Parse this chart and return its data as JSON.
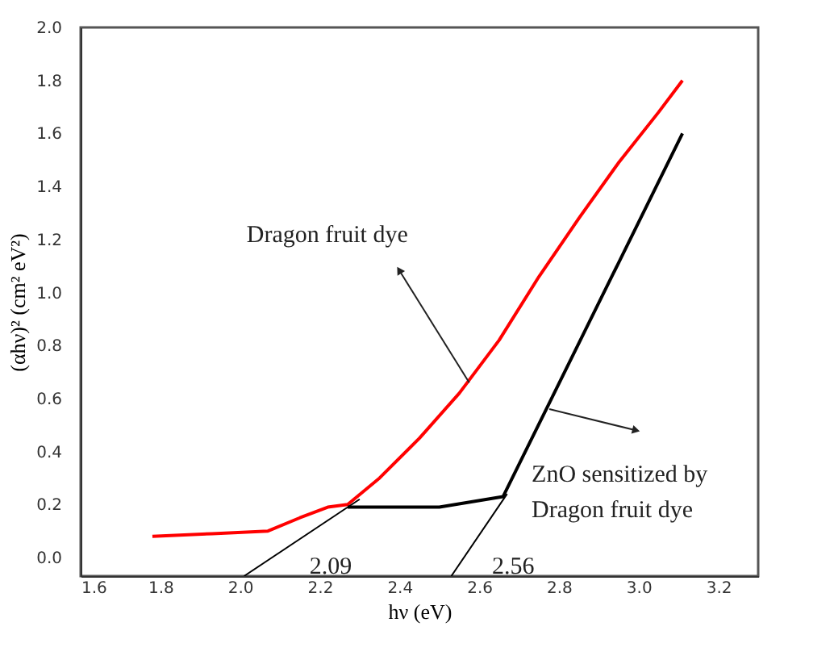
{
  "chart_data": {
    "type": "line",
    "xlabel": "hν (eV)",
    "ylabel": "(αhν)² (cm² eV²)",
    "xlim": [
      1.6,
      3.3
    ],
    "xticks": [
      1.6,
      1.8,
      {
        "value": 2,
        "label": "2.0"
      },
      2.2,
      2.4,
      2.6,
      2.8,
      {
        "value": 3,
        "label": "3.0"
      },
      3.2
    ],
    "ylim": [
      -0.07,
      2.0
    ],
    "yticks": [
      {
        "value": 0,
        "label": "0.0"
      },
      0.2,
      0.4,
      0.6,
      0.8,
      {
        "value": 1,
        "label": "1.0"
      },
      1.2,
      1.4,
      1.6,
      1.8,
      {
        "value": 2,
        "label": "2.0"
      }
    ],
    "marker": "none",
    "line_style": "solid",
    "series": [
      {
        "color": "#ff0000",
        "x": [
          1.78,
          1.93,
          2.07,
          2.15,
          2.22,
          2.27,
          2.35,
          2.45,
          2.55,
          2.65,
          2.75,
          2.85,
          2.95,
          3.05,
          3.11
        ],
        "values": [
          0.08,
          0.09,
          0.1,
          0.15,
          0.19,
          0.2,
          0.3,
          0.45,
          0.62,
          0.82,
          1.06,
          1.28,
          1.49,
          1.68,
          1.8
        ]
      },
      {
        "color": "#000000",
        "x": [
          2.27,
          2.5,
          2.66,
          3.11
        ],
        "values": [
          0.19,
          0.19,
          0.23,
          1.6
        ]
      },
      {
        "color": "#000000",
        "x": [
          2.01,
          2.3
        ],
        "values": [
          -0.07,
          0.22
        ]
      },
      {
        "color": "#000000",
        "x": [
          2.53,
          2.67
        ],
        "values": [
          -0.07,
          0.24
        ]
      }
    ],
    "annotations": [
      {
        "text": "Dragon fruit dye",
        "x": 2.575,
        "y": 0.66
      },
      {
        "text": "ZnO sensitized by\nDragon fruit dye",
        "x": 2.776,
        "y": 0.56
      },
      {
        "text": "2.09",
        "x": 2.09,
        "y": 0
      },
      {
        "text": "2.56",
        "x": 2.56,
        "y": 0
      }
    ]
  }
}
